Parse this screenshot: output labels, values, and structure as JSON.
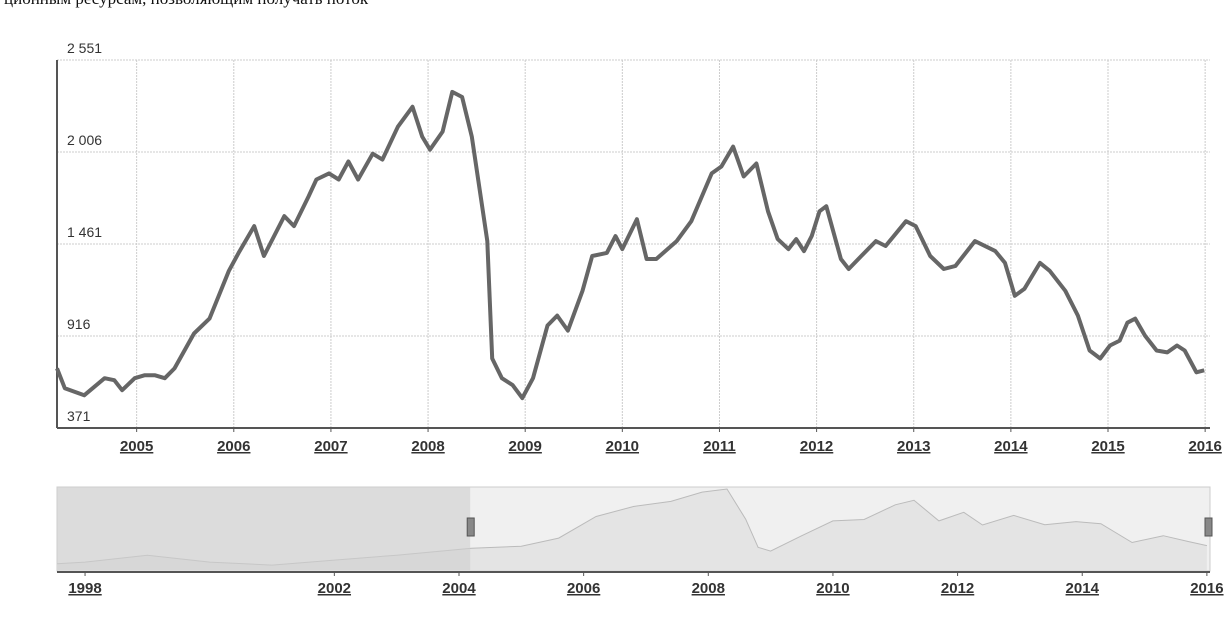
{
  "header_text": "ционным ресурсам, позволяющим получать поток",
  "chart_data": [
    {
      "type": "line",
      "color": "#666666",
      "grid": true,
      "x": [
        2004.18,
        2004.26,
        2004.46,
        2004.67,
        2004.77,
        2004.85,
        2004.98,
        2005.08,
        2005.19,
        2005.29,
        2005.39,
        2005.59,
        2005.75,
        2005.95,
        2006.05,
        2006.21,
        2006.31,
        2006.52,
        2006.62,
        2006.77,
        2006.85,
        2006.98,
        2007.08,
        2007.18,
        2007.28,
        2007.43,
        2007.53,
        2007.69,
        2007.84,
        2007.94,
        2008.02,
        2008.15,
        2008.25,
        2008.35,
        2008.45,
        2008.61,
        2008.66,
        2008.76,
        2008.87,
        2008.97,
        2009.08,
        2009.23,
        2009.33,
        2009.44,
        2009.59,
        2009.69,
        2009.84,
        2009.93,
        2010.0,
        2010.15,
        2010.25,
        2010.35,
        2010.56,
        2010.71,
        2010.92,
        2011.02,
        2011.14,
        2011.25,
        2011.38,
        2011.5,
        2011.6,
        2011.71,
        2011.79,
        2011.87,
        2011.95,
        2012.03,
        2012.1,
        2012.25,
        2012.33,
        2012.46,
        2012.61,
        2012.71,
        2012.92,
        2013.02,
        2013.17,
        2013.31,
        2013.43,
        2013.63,
        2013.84,
        2013.94,
        2014.04,
        2014.14,
        2014.3,
        2014.4,
        2014.56,
        2014.69,
        2014.81,
        2014.92,
        2015.02,
        2015.12,
        2015.2,
        2015.28,
        2015.38,
        2015.5,
        2015.61,
        2015.71,
        2015.79,
        2015.91,
        2015.99
      ],
      "values": [
        724,
        607,
        565,
        666,
        654,
        595,
        666,
        683,
        683,
        666,
        724,
        931,
        1019,
        1302,
        1408,
        1567,
        1390,
        1626,
        1567,
        1743,
        1843,
        1879,
        1843,
        1950,
        1843,
        1996,
        1961,
        2156,
        2274,
        2097,
        2020,
        2127,
        2362,
        2332,
        2097,
        1478,
        783,
        666,
        625,
        548,
        666,
        978,
        1037,
        948,
        1184,
        1390,
        1408,
        1508,
        1431,
        1608,
        1372,
        1372,
        1478,
        1596,
        1879,
        1920,
        2038,
        1861,
        1938,
        1655,
        1490,
        1431,
        1490,
        1419,
        1508,
        1655,
        1685,
        1372,
        1313,
        1390,
        1478,
        1449,
        1596,
        1567,
        1390,
        1313,
        1331,
        1478,
        1419,
        1349,
        1154,
        1196,
        1349,
        1302,
        1184,
        1037,
        830,
        783,
        860,
        889,
        995,
        1019,
        919,
        830,
        819,
        860,
        830,
        701,
        713
      ],
      "xlim": [
        2004.18,
        2016.05
      ],
      "xticks": [
        2005,
        2006,
        2007,
        2008,
        2009,
        2010,
        2011,
        2012,
        2013,
        2014,
        2015,
        2016
      ],
      "ylim": [
        371,
        2551
      ],
      "yticks": [
        {
          "value": 371,
          "label": "371"
        },
        {
          "value": 916,
          "label": "916"
        },
        {
          "value": 1461,
          "label": "1 461"
        },
        {
          "value": 2006,
          "label": "2 006"
        },
        {
          "value": 2551,
          "label": "2 551"
        }
      ]
    },
    {
      "type": "area",
      "color": "#bbbbbb",
      "x": [
        1997.55,
        1998.0,
        1999.0,
        2000.0,
        2001.0,
        2002.0,
        2003.0,
        2004.2,
        2005.0,
        2005.6,
        2006.2,
        2006.8,
        2007.4,
        2007.9,
        2008.3,
        2008.6,
        2008.8,
        2009.0,
        2009.5,
        2010.0,
        2010.5,
        2011.0,
        2011.3,
        2011.7,
        2012.1,
        2012.4,
        2012.9,
        2013.4,
        2013.9,
        2014.3,
        2014.8,
        2015.3,
        2015.7,
        2016.0
      ],
      "values": [
        180,
        230,
        430,
        230,
        144,
        288,
        432,
        634,
        690,
        930,
        1560,
        1850,
        2000,
        2270,
        2360,
        1480,
        660,
        550,
        1000,
        1430,
        1470,
        1900,
        2030,
        1430,
        1680,
        1310,
        1590,
        1320,
        1410,
        1350,
        800,
        1000,
        830,
        710
      ],
      "xlim": [
        1997.55,
        2016.05
      ],
      "xticks": [
        1998,
        2002,
        2004,
        2006,
        2008,
        2010,
        2012,
        2014,
        2016
      ]
    }
  ]
}
